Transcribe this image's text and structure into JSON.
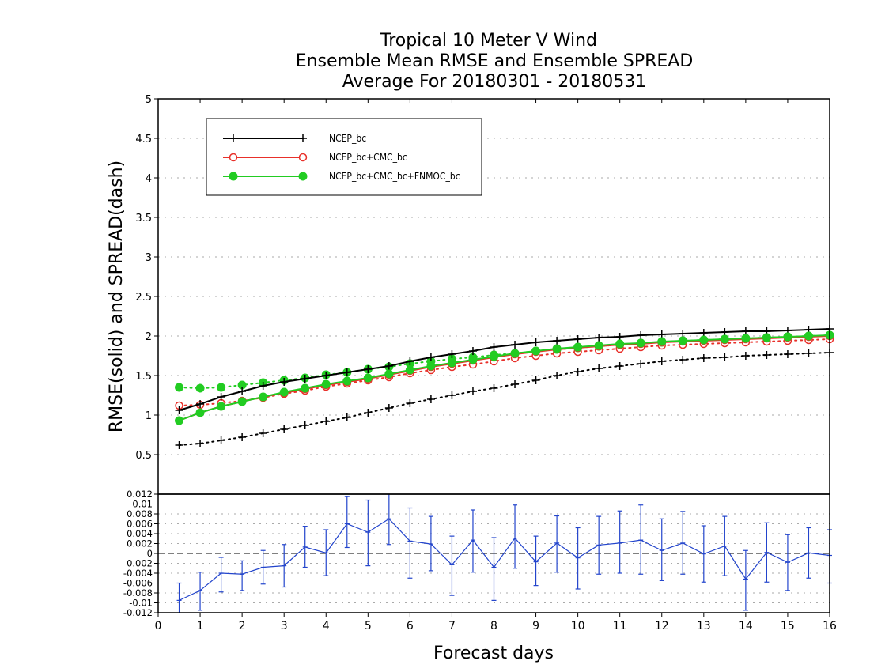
{
  "chart_data": [
    {
      "type": "line",
      "title": [
        "Tropical 10 Meter V Wind",
        "Ensemble Mean RMSE and Ensemble SPREAD",
        "Average For 20180301 - 20180531"
      ],
      "xlabel": "Forecast days",
      "ylabel": "RMSE(solid)  and  SPREAD(dash)",
      "xlim": [
        0,
        16
      ],
      "ylim": [
        0,
        5
      ],
      "x_ticks": [
        "0",
        "1",
        "2",
        "3",
        "4",
        "5",
        "6",
        "7",
        "8",
        "9",
        "10",
        "11",
        "12",
        "13",
        "14",
        "15",
        "16"
      ],
      "y_ticks": [
        "0.5",
        "1",
        "1.5",
        "2",
        "2.5",
        "3",
        "3.5",
        "4",
        "4.5",
        "5"
      ],
      "grid": true,
      "legend_position": "top-left",
      "x": [
        0.5,
        1,
        1.5,
        2,
        2.5,
        3,
        3.5,
        4,
        4.5,
        5,
        5.5,
        6,
        6.5,
        7,
        7.5,
        8,
        8.5,
        9,
        9.5,
        10,
        10.5,
        11,
        11.5,
        12,
        12.5,
        13,
        13.5,
        14,
        14.5,
        15,
        15.5,
        16
      ],
      "series": [
        {
          "name": "NCEP_bc",
          "color": "#000000",
          "marker": "plus",
          "rmse": [
            1.06,
            1.14,
            1.23,
            1.3,
            1.37,
            1.42,
            1.46,
            1.5,
            1.54,
            1.58,
            1.62,
            1.68,
            1.73,
            1.77,
            1.81,
            1.86,
            1.89,
            1.92,
            1.94,
            1.96,
            1.98,
            1.99,
            2.01,
            2.02,
            2.03,
            2.04,
            2.05,
            2.06,
            2.06,
            2.07,
            2.08,
            2.09
          ],
          "spread": [
            0.62,
            0.64,
            0.68,
            0.72,
            0.77,
            0.82,
            0.87,
            0.92,
            0.97,
            1.03,
            1.09,
            1.15,
            1.2,
            1.25,
            1.3,
            1.34,
            1.39,
            1.44,
            1.5,
            1.55,
            1.59,
            1.62,
            1.65,
            1.68,
            1.7,
            1.72,
            1.73,
            1.75,
            1.76,
            1.77,
            1.78,
            1.79
          ]
        },
        {
          "name": "NCEP_bc+CMC_bc",
          "color": "#e8302a",
          "marker": "open-circle",
          "rmse": [
            0.93,
            1.03,
            1.11,
            1.17,
            1.23,
            1.28,
            1.33,
            1.38,
            1.42,
            1.46,
            1.51,
            1.56,
            1.61,
            1.65,
            1.69,
            1.73,
            1.77,
            1.8,
            1.83,
            1.85,
            1.87,
            1.89,
            1.9,
            1.92,
            1.93,
            1.94,
            1.95,
            1.96,
            1.97,
            1.98,
            1.99,
            2.0
          ],
          "spread": [
            1.12,
            1.13,
            1.15,
            1.18,
            1.22,
            1.27,
            1.31,
            1.36,
            1.4,
            1.44,
            1.48,
            1.53,
            1.57,
            1.61,
            1.64,
            1.68,
            1.72,
            1.75,
            1.78,
            1.8,
            1.82,
            1.84,
            1.86,
            1.88,
            1.89,
            1.9,
            1.91,
            1.92,
            1.93,
            1.94,
            1.95,
            1.96
          ]
        },
        {
          "name": "NCEP_bc+CMC_bc+FNMOC_bc",
          "color": "#22cc22",
          "marker": "filled-circle",
          "rmse": [
            0.93,
            1.03,
            1.11,
            1.17,
            1.23,
            1.29,
            1.34,
            1.39,
            1.43,
            1.47,
            1.52,
            1.57,
            1.62,
            1.66,
            1.7,
            1.74,
            1.78,
            1.81,
            1.84,
            1.86,
            1.88,
            1.9,
            1.91,
            1.93,
            1.94,
            1.95,
            1.96,
            1.97,
            1.98,
            1.99,
            2.0,
            2.01
          ],
          "spread": [
            1.35,
            1.34,
            1.35,
            1.38,
            1.41,
            1.44,
            1.47,
            1.51,
            1.54,
            1.58,
            1.61,
            1.65,
            1.68,
            1.71,
            1.73,
            1.76,
            1.78,
            1.81,
            1.83,
            1.85,
            1.87,
            1.89,
            1.91,
            1.92,
            1.94,
            1.95,
            1.96,
            1.97,
            1.98,
            1.99,
            2.0,
            2.01
          ]
        }
      ]
    },
    {
      "type": "line",
      "xlim": [
        0,
        16
      ],
      "ylim": [
        -0.012,
        0.012
      ],
      "y_ticks": [
        "-0.012",
        "-0.01",
        "-0.008",
        "-0.006",
        "-0.004",
        "-0.002",
        "0",
        "0.002",
        "0.004",
        "0.006",
        "0.008",
        "0.01",
        "0.012"
      ],
      "grid": true,
      "series": [
        {
          "color": "#2244cc",
          "x": [
            0.5,
            1,
            1.5,
            2,
            2.5,
            3,
            3.5,
            4,
            4.5,
            5,
            5.5,
            6,
            6.5,
            7,
            7.5,
            8,
            8.5,
            9,
            9.5,
            10,
            10.5,
            11,
            11.5,
            12,
            12.5,
            13,
            13.5,
            14,
            14.5,
            15,
            15.5,
            16
          ],
          "values": [
            -0.0095,
            -0.0075,
            -0.004,
            -0.0042,
            -0.0028,
            -0.0025,
            0.0013,
            0.0001,
            0.006,
            0.0043,
            0.007,
            0.0025,
            0.0019,
            -0.0023,
            0.0027,
            -0.0028,
            0.0031,
            -0.0017,
            0.0021,
            -0.0009,
            0.0017,
            0.0021,
            0.0027,
            0.0006,
            0.0021,
            -0.0001,
            0.0015,
            -0.0052,
            0.0002,
            -0.0018,
            0.0001,
            -0.0004
          ],
          "err_low": [
            -0.012,
            -0.0115,
            -0.0078,
            -0.0075,
            -0.0062,
            -0.0068,
            -0.0028,
            -0.0045,
            0.0012,
            -0.0025,
            0.0018,
            -0.005,
            -0.0035,
            -0.0085,
            -0.0038,
            -0.0095,
            -0.003,
            -0.0065,
            -0.0038,
            -0.0072,
            -0.0042,
            -0.004,
            -0.0042,
            -0.0055,
            -0.0042,
            -0.0058,
            -0.0045,
            -0.0115,
            -0.0058,
            -0.0075,
            -0.005,
            -0.006
          ],
          "err_high": [
            -0.006,
            -0.0038,
            -0.0008,
            -0.0015,
            0.0006,
            0.0018,
            0.0055,
            0.0048,
            0.0115,
            0.0108,
            0.012,
            0.0092,
            0.0075,
            0.0035,
            0.0088,
            0.0032,
            0.0098,
            0.0035,
            0.0076,
            0.0052,
            0.0075,
            0.0086,
            0.0098,
            0.007,
            0.0085,
            0.0056,
            0.0075,
            0.0006,
            0.0062,
            0.0038,
            0.0052,
            0.0048
          ]
        }
      ]
    }
  ]
}
